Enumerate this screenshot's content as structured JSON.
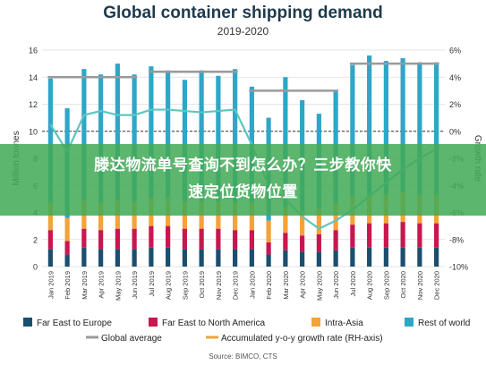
{
  "header": {
    "title": "Global container shipping demand",
    "subtitle": "2019-2020"
  },
  "banner": {
    "line1": "滕达物流单号查询不到怎么办？三步教你快",
    "line2": "速定位货物位置"
  },
  "source": "Source: BIMCO, CTS",
  "colors": {
    "far_east_europe": "#1c4e6e",
    "far_east_na": "#c8174f",
    "intra_asia": "#f2a33a",
    "rest_of_world": "#2fa6c8",
    "global_average": "#9a9a9a",
    "growth_rate": "#5fc5c0"
  },
  "chart_data": {
    "type": "bar",
    "stacked": true,
    "categories": [
      "Jan 2019",
      "Feb 2019",
      "Mar 2019",
      "Apr 2019",
      "May 2019",
      "Jun 2019",
      "Jul 2019",
      "Aug 2019",
      "Sep 2019",
      "Oct 2019",
      "Nov 2019",
      "Dec 2019",
      "Jan 2020",
      "Feb 2020",
      "Mar 2020",
      "Apr 2020",
      "May 2020",
      "Jun 2020",
      "Jul 2020",
      "Aug 2020",
      "Sep 2020",
      "Oct 2020",
      "Nov 2020",
      "Dec 2020"
    ],
    "ylabel": "Million tonnes",
    "y2label": "Growth rate",
    "ylim": [
      0,
      16
    ],
    "yticks": [
      "0",
      "2",
      "4",
      "6",
      "8",
      "10",
      "12",
      "14",
      "16"
    ],
    "y2lim": [
      -10,
      6
    ],
    "y2ticks": [
      "-10%",
      "-8%",
      "-6%",
      "-4%",
      "-2%",
      "0%",
      "2%",
      "4%",
      "6%"
    ],
    "series": [
      {
        "name": "Far East to Europe",
        "values": [
          1.3,
          0.9,
          1.4,
          1.3,
          1.3,
          1.3,
          1.4,
          1.4,
          1.3,
          1.3,
          1.3,
          1.3,
          1.3,
          0.9,
          1.2,
          1.1,
          1.1,
          1.2,
          1.4,
          1.4,
          1.4,
          1.4,
          1.4,
          1.4
        ]
      },
      {
        "name": "Far East to North America",
        "values": [
          1.4,
          1.0,
          1.4,
          1.4,
          1.5,
          1.5,
          1.6,
          1.6,
          1.5,
          1.5,
          1.5,
          1.4,
          1.4,
          0.9,
          1.3,
          1.2,
          1.3,
          1.5,
          1.7,
          1.8,
          1.8,
          1.9,
          1.8,
          1.8
        ]
      },
      {
        "name": "Intra-Asia",
        "values": [
          2.0,
          1.7,
          2.1,
          2.0,
          2.1,
          2.0,
          2.1,
          2.1,
          2.0,
          2.0,
          2.0,
          2.0,
          2.0,
          1.6,
          1.9,
          1.8,
          1.9,
          2.0,
          2.1,
          2.1,
          2.1,
          2.2,
          2.1,
          2.1
        ]
      },
      {
        "name": "Rest of world",
        "values": [
          9.2,
          8.1,
          9.7,
          9.5,
          10.1,
          9.4,
          9.7,
          9.4,
          9.0,
          9.7,
          9.3,
          9.9,
          8.6,
          7.6,
          9.6,
          8.2,
          7.0,
          8.3,
          9.7,
          10.3,
          9.9,
          9.9,
          9.8,
          9.8
        ]
      }
    ],
    "global_average": {
      "name": "Global average",
      "segments": [
        {
          "from": "Jan 2019",
          "to": "Jun 2019",
          "value": 14.0
        },
        {
          "from": "Jul 2019",
          "to": "Dec 2019",
          "value": 14.4
        },
        {
          "from": "Jan 2020",
          "to": "Jun 2020",
          "value": 13.0
        },
        {
          "from": "Jul 2020",
          "to": "Dec 2020",
          "value": 15.0
        }
      ]
    },
    "growth_line": {
      "name": "Accumulated y-o-y growth rate (RH-axis)",
      "values": [
        0.5,
        -1.5,
        1.2,
        1.5,
        1.2,
        1.2,
        1.6,
        1.6,
        1.5,
        1.4,
        1.5,
        1.6,
        -1.0,
        -4.0,
        -5.0,
        -6.3,
        -7.2,
        -6.6,
        -5.8,
        -4.8,
        -3.8,
        -2.8,
        -2.0,
        -1.3
      ]
    },
    "legend": {
      "placement": "bottom",
      "items": [
        {
          "label": "Far East to Europe",
          "kind": "box",
          "color": "#1c4e6e"
        },
        {
          "label": "Far East to North America",
          "kind": "box",
          "color": "#c8174f"
        },
        {
          "label": "Intra-Asia",
          "kind": "box",
          "color": "#f2a33a"
        },
        {
          "label": "Rest of world",
          "kind": "box",
          "color": "#2fa6c8"
        },
        {
          "label": "Global average",
          "kind": "line",
          "color": "#9a9a9a"
        },
        {
          "label": "Accumulated y-o-y growth rate (RH-axis)",
          "kind": "line",
          "color": "#f2a33a"
        }
      ]
    },
    "grid": true
  }
}
